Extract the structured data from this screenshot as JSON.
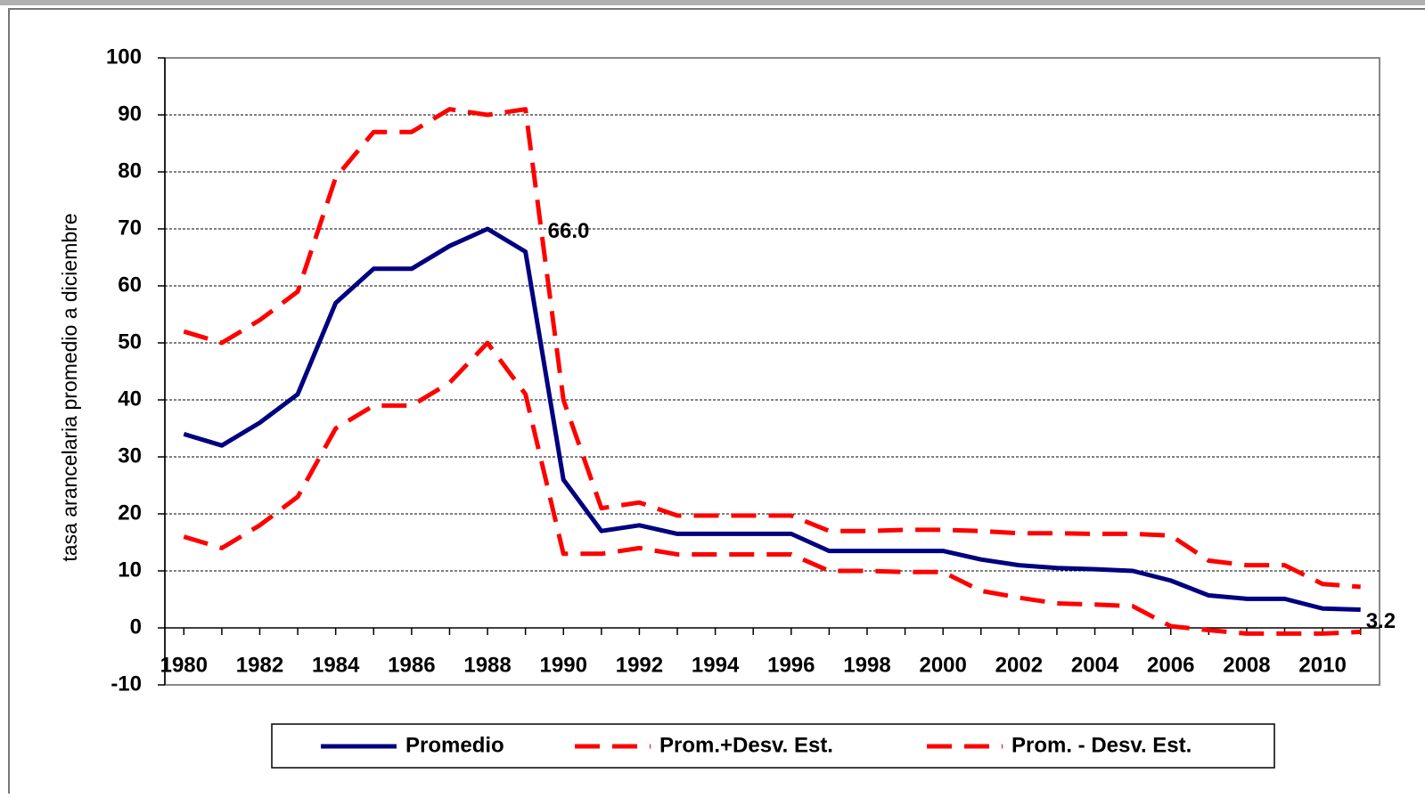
{
  "chart_data": {
    "type": "line",
    "y_label": "tasa arancelaria promedio a diciembre",
    "x": [
      1980,
      1981,
      1982,
      1983,
      1984,
      1985,
      1986,
      1987,
      1988,
      1989,
      1990,
      1991,
      1992,
      1993,
      1994,
      1995,
      1996,
      1997,
      1998,
      1999,
      2000,
      2001,
      2002,
      2003,
      2004,
      2005,
      2006,
      2007,
      2008,
      2009,
      2010,
      2011
    ],
    "xlim": [
      1979.5,
      2011.5
    ],
    "xticks": [
      1980,
      1982,
      1984,
      1986,
      1988,
      1990,
      1992,
      1994,
      1996,
      1998,
      2000,
      2002,
      2004,
      2006,
      2008,
      2010
    ],
    "ylim": [
      -10,
      100
    ],
    "yticks": [
      -10,
      0,
      10,
      20,
      30,
      40,
      50,
      60,
      70,
      80,
      90,
      100
    ],
    "grid": true,
    "legend": "bottom",
    "series": [
      {
        "name": "Promedio",
        "color": "#000080",
        "dashed": false,
        "values": [
          34,
          32,
          36,
          41,
          57,
          63,
          63,
          67,
          70,
          66,
          26,
          17,
          18,
          16.5,
          16.5,
          16.5,
          16.5,
          13.5,
          13.5,
          13.5,
          13.5,
          12,
          11,
          10.5,
          10.3,
          10,
          8.3,
          5.7,
          5.1,
          5.1,
          3.4,
          3.2
        ],
        "value_labels": [
          null,
          null,
          null,
          null,
          null,
          null,
          null,
          null,
          null,
          "66.0",
          null,
          null,
          null,
          null,
          null,
          null,
          null,
          null,
          null,
          null,
          null,
          null,
          null,
          null,
          null,
          null,
          null,
          null,
          null,
          null,
          null,
          "3.2"
        ]
      },
      {
        "name": "Prom.+Desv. Est.",
        "color": "#ff0000",
        "dashed": true,
        "values": [
          52,
          50,
          54,
          59,
          79,
          87,
          87,
          91,
          90,
          91,
          40,
          21,
          22,
          19.7,
          19.7,
          19.7,
          19.7,
          17,
          17,
          17.2,
          17.2,
          17,
          16.6,
          16.6,
          16.5,
          16.5,
          16.2,
          11.8,
          11,
          11,
          7.7,
          7.2
        ]
      },
      {
        "name": "Prom. - Desv. Est.",
        "color": "#ff0000",
        "dashed": true,
        "values": [
          16,
          14,
          18,
          23,
          35,
          39,
          39,
          43,
          50,
          41,
          13,
          13,
          14,
          12.9,
          12.9,
          12.9,
          12.9,
          10,
          10,
          9.8,
          9.8,
          6.5,
          5.3,
          4.3,
          4.1,
          3.8,
          0.3,
          -0.4,
          -1,
          -1,
          -1,
          -0.7
        ]
      }
    ]
  }
}
